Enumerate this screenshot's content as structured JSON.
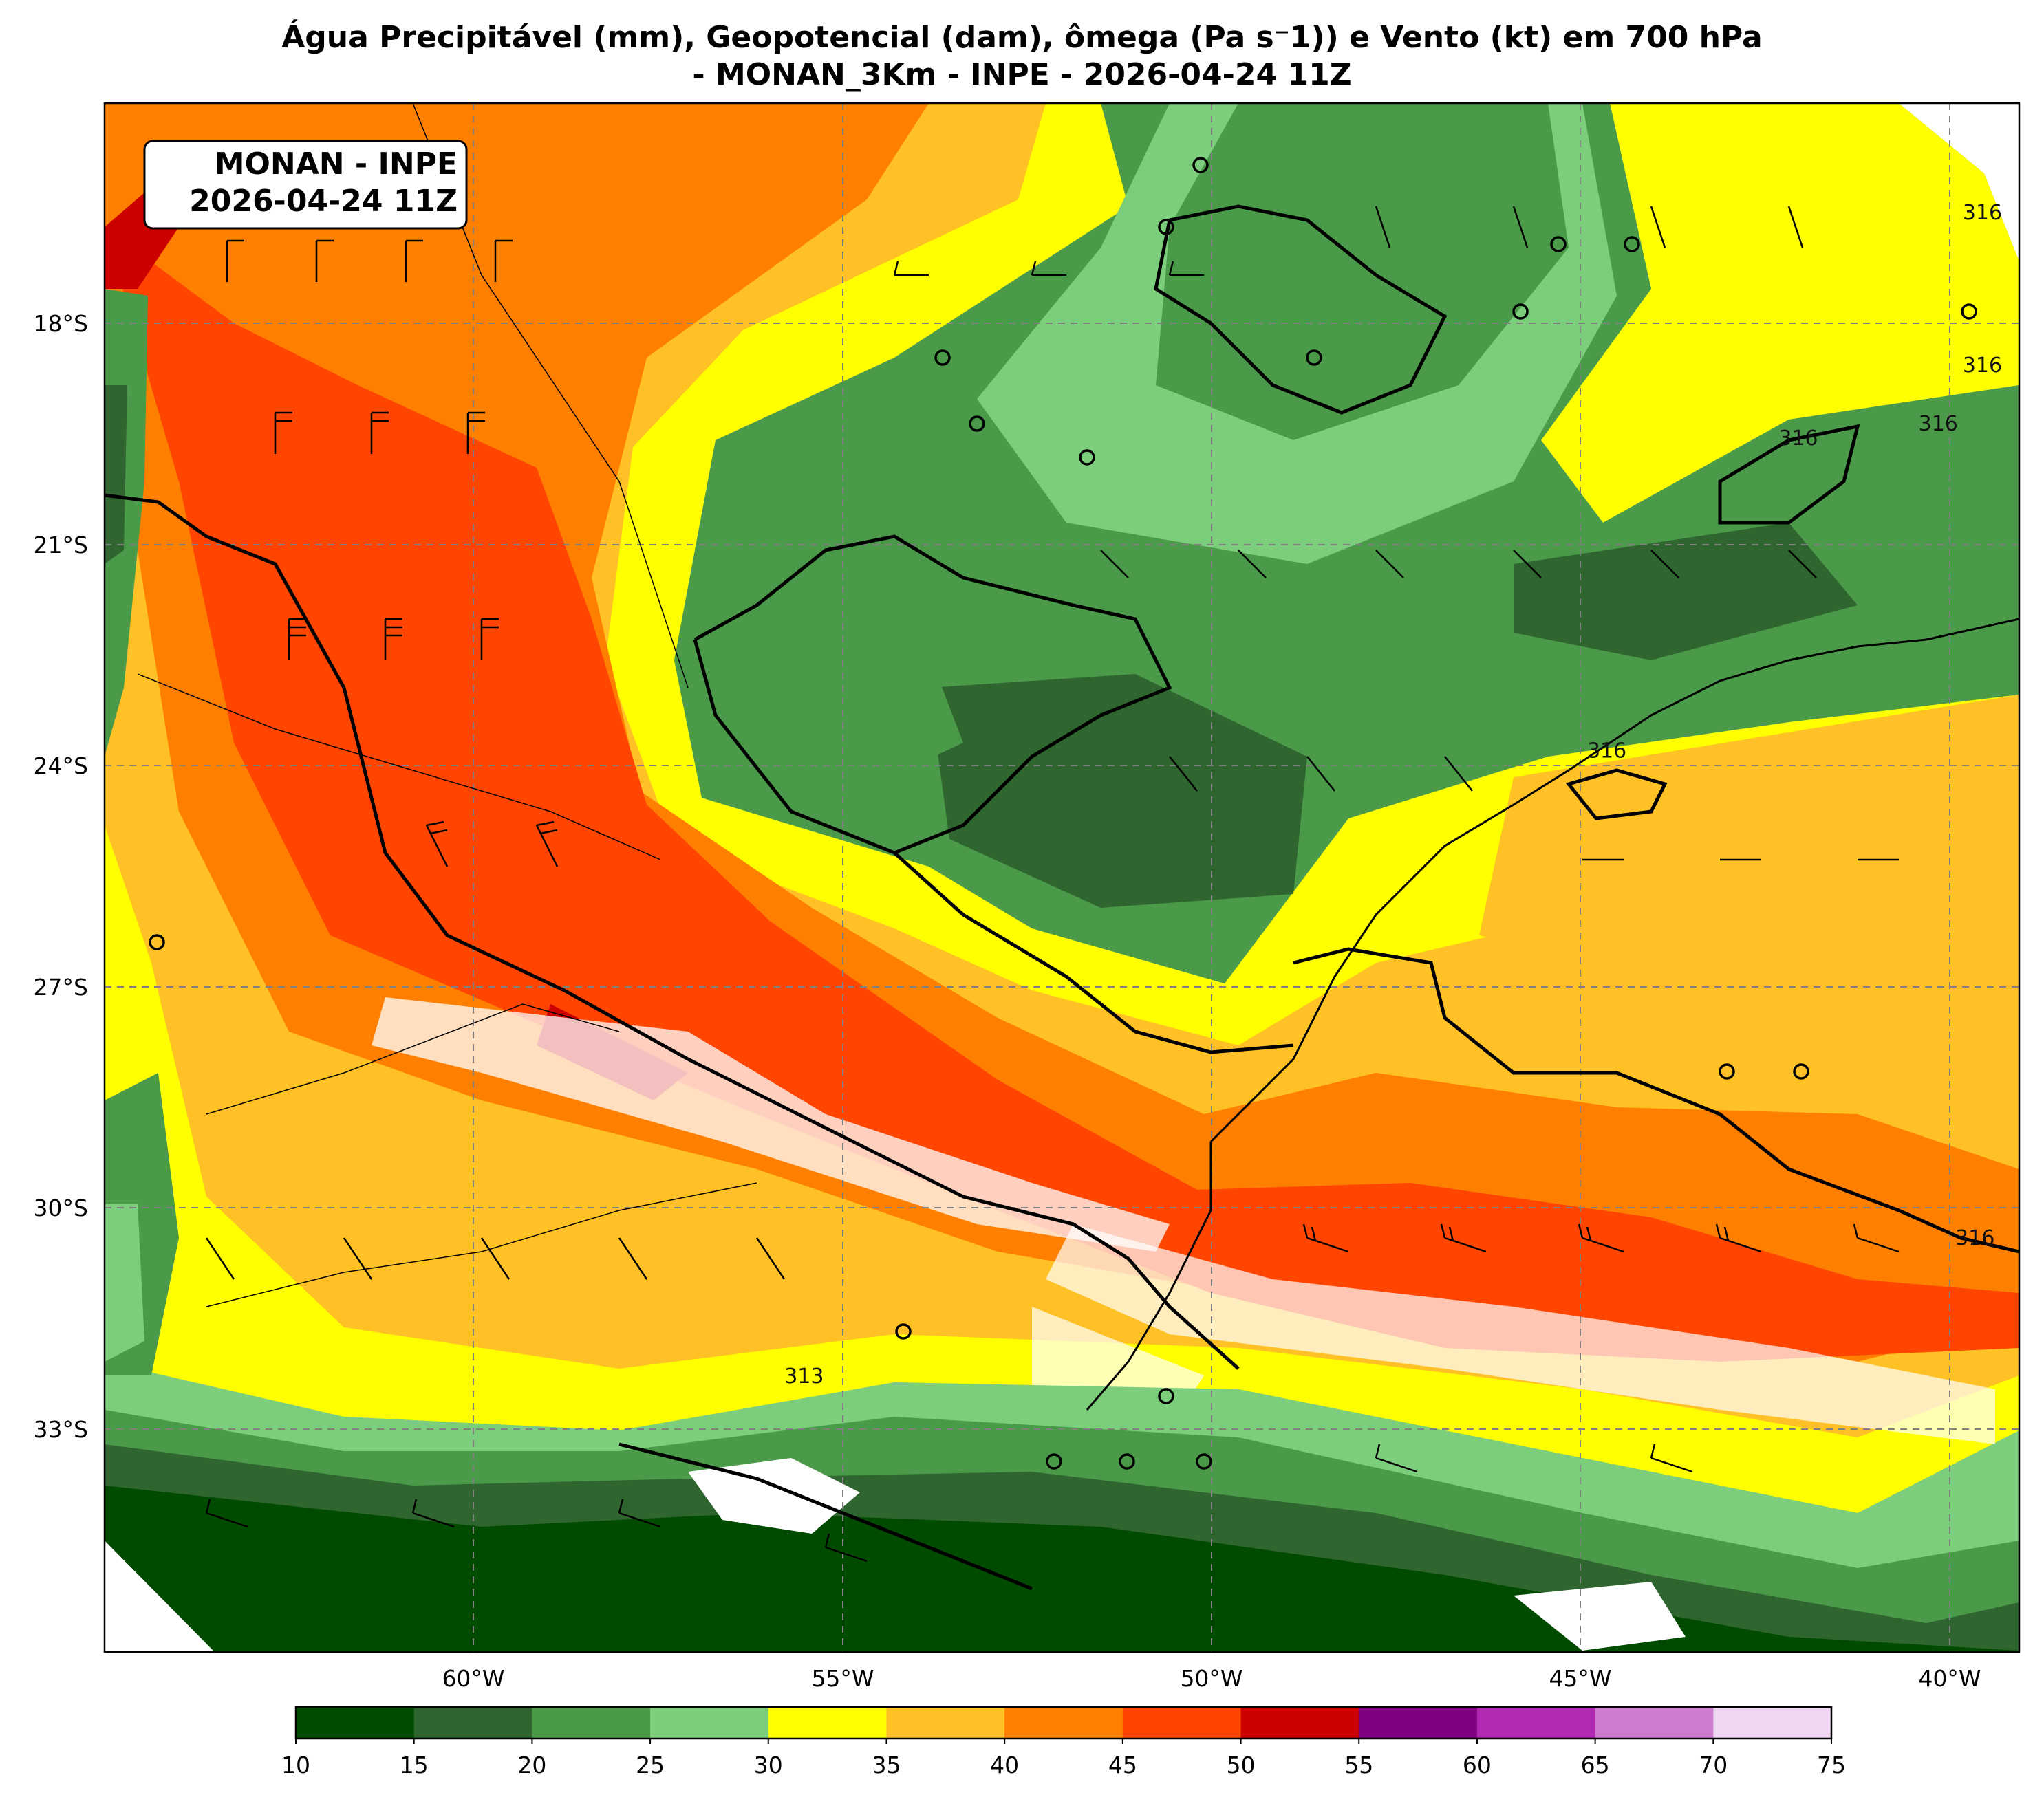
{
  "title": {
    "line1": "Água Precipitável (mm), Geopotencial (dam), ômega (Pa s⁻1)) e Vento (kt) em 700 hPa",
    "line2": "- MONAN_3Km - INPE - 2026-04-24 11Z"
  },
  "info_box": {
    "line1": "MONAN - INPE",
    "line2": "2026-04-24 11Z"
  },
  "axes": {
    "lat_ticks": [
      "18°S",
      "21°S",
      "24°S",
      "27°S",
      "30°S",
      "33°S"
    ],
    "lon_ticks": [
      "60°W",
      "55°W",
      "50°W",
      "45°W",
      "40°W"
    ],
    "lon_range": [
      -65,
      -39
    ],
    "lat_range": [
      -36.5,
      -15.2
    ]
  },
  "colorbar": {
    "ticks": [
      "10",
      "15",
      "20",
      "25",
      "30",
      "35",
      "40",
      "45",
      "50",
      "55",
      "60",
      "65",
      "70",
      "75"
    ],
    "colors": [
      "#004b00",
      "#2f662f",
      "#4a9a4a",
      "#7ccd7c",
      "#ffff00",
      "#ffc125",
      "#ff7f00",
      "#ff4500",
      "#cd0000",
      "#800080",
      "#b22ab2",
      "#cd7bcd",
      "#f0d6f0"
    ]
  },
  "contour_labels": [
    {
      "text": "316",
      "lon": -39.5,
      "lat": -16.8
    },
    {
      "text": "316",
      "lon": -39.5,
      "lat": -18.9
    },
    {
      "text": "316",
      "lon": -40.1,
      "lat": -19.7
    },
    {
      "text": "316",
      "lon": -42.0,
      "lat": -19.9
    },
    {
      "text": "316",
      "lon": -44.6,
      "lat": -24.2
    },
    {
      "text": "316",
      "lon": -39.6,
      "lat": -30.9
    },
    {
      "text": "313",
      "lon": -55.5,
      "lat": -32.8
    }
  ]
}
